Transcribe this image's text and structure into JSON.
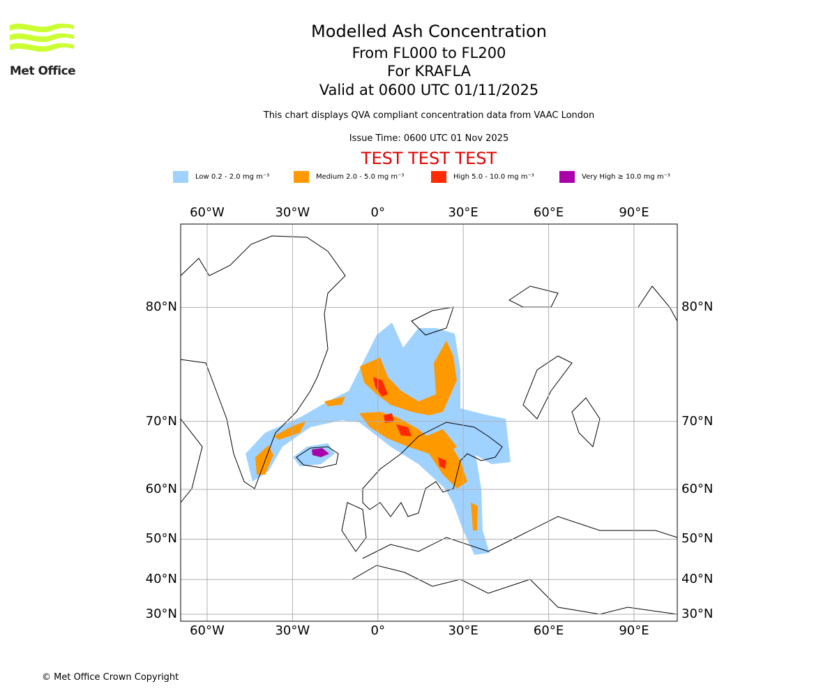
{
  "header": {
    "title": "Modelled Ash Concentration",
    "levels": "From FL000 to FL200",
    "volcano": "For KRAFLA",
    "valid": "Valid at 0600 UTC 01/11/2025",
    "subtitle": "This chart displays QVA compliant concentration data from VAAC London",
    "issue": "Issue Time: 0600 UTC 01 Nov 2025",
    "test": "TEST TEST TEST"
  },
  "logo": {
    "text": "Met Office",
    "color": "#ccff33"
  },
  "legend": [
    {
      "label": "Low 0.2 - 2.0 mg m⁻³",
      "color": "#a0d2ff"
    },
    {
      "label": "Medium 2.0 - 5.0 mg m⁻³",
      "color": "#ff9900"
    },
    {
      "label": "High 5.0 - 10.0 mg m⁻³",
      "color": "#ff2a00"
    },
    {
      "label": "Very High ≥ 10.0 mg m⁻³",
      "color": "#aa00aa"
    }
  ],
  "map": {
    "lon_ticks": [
      {
        "value": -60,
        "label": "60°W"
      },
      {
        "value": -30,
        "label": "30°W"
      },
      {
        "value": 0,
        "label": "0°"
      },
      {
        "value": 30,
        "label": "30°E"
      },
      {
        "value": 60,
        "label": "60°E"
      },
      {
        "value": 90,
        "label": "90°E"
      }
    ],
    "lat_ticks": [
      {
        "value": 80,
        "label": "80°N"
      },
      {
        "value": 70,
        "label": "70°N"
      },
      {
        "value": 60,
        "label": "60°N"
      },
      {
        "value": 50,
        "label": "50°N"
      },
      {
        "value": 40,
        "label": "40°N"
      },
      {
        "value": 30,
        "label": "30°N"
      }
    ],
    "lon_range": [
      -69.3,
      105.2
    ],
    "lat_range": [
      28,
      86
    ]
  },
  "footer": {
    "copyright": "© Met Office Crown Copyright"
  }
}
